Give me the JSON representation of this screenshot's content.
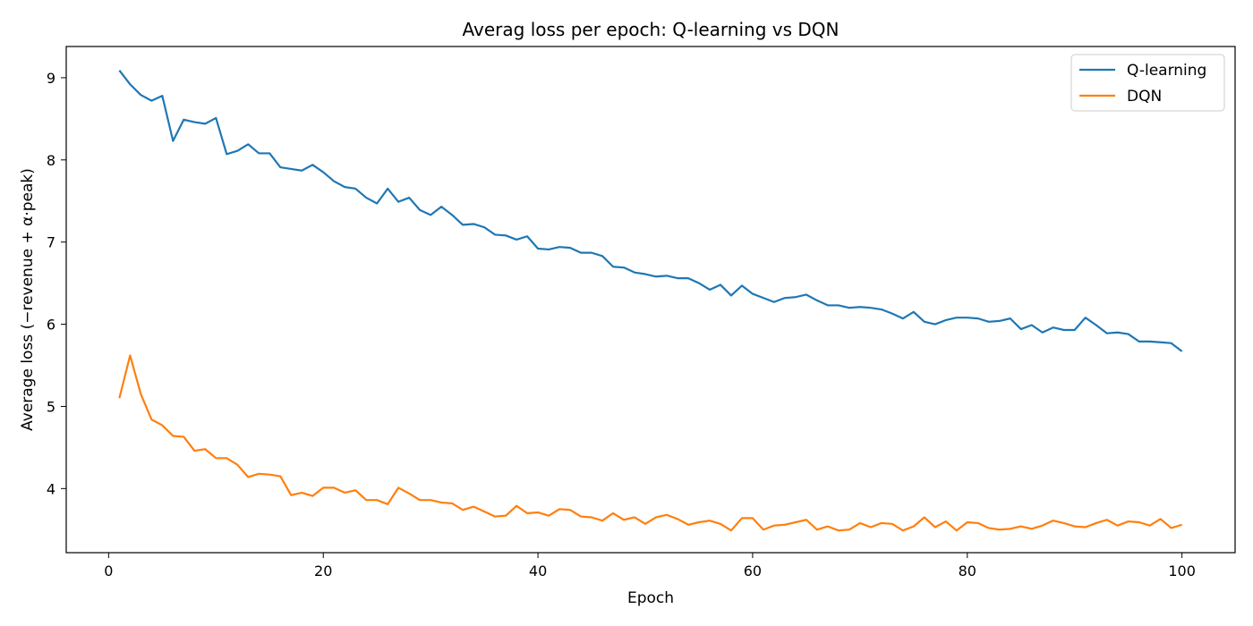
{
  "chart_data": {
    "type": "line",
    "title": "Averag loss per epoch: Q-learning vs DQN",
    "xlabel": "Epoch",
    "ylabel": "Average loss  (−revenue + α·peak)",
    "xlim": [
      -3.95,
      104.95
    ],
    "ylim": [
      3.22,
      9.38
    ],
    "xticks": [
      0,
      20,
      40,
      60,
      80,
      100
    ],
    "yticks": [
      4,
      5,
      6,
      7,
      8,
      9
    ],
    "grid": false,
    "legend_position": "top-right",
    "x": [
      1,
      2,
      3,
      4,
      5,
      6,
      7,
      8,
      9,
      10,
      11,
      12,
      13,
      14,
      15,
      16,
      17,
      18,
      19,
      20,
      21,
      22,
      23,
      24,
      25,
      26,
      27,
      28,
      29,
      30,
      31,
      32,
      33,
      34,
      35,
      36,
      37,
      38,
      39,
      40,
      41,
      42,
      43,
      44,
      45,
      46,
      47,
      48,
      49,
      50,
      51,
      52,
      53,
      54,
      55,
      56,
      57,
      58,
      59,
      60,
      61,
      62,
      63,
      64,
      65,
      66,
      67,
      68,
      69,
      70,
      71,
      72,
      73,
      74,
      75,
      76,
      77,
      78,
      79,
      80,
      81,
      82,
      83,
      84,
      85,
      86,
      87,
      88,
      89,
      90,
      91,
      92,
      93,
      94,
      95,
      96,
      97,
      98,
      99,
      100
    ],
    "series": [
      {
        "name": "Q-learning",
        "color": "#1f77b4",
        "values": [
          9.09,
          8.92,
          8.79,
          8.72,
          8.78,
          8.23,
          8.49,
          8.46,
          8.44,
          8.51,
          8.07,
          8.11,
          8.19,
          8.08,
          8.08,
          7.91,
          7.89,
          7.87,
          7.94,
          7.85,
          7.74,
          7.67,
          7.65,
          7.54,
          7.47,
          7.65,
          7.49,
          7.54,
          7.39,
          7.33,
          7.43,
          7.33,
          7.21,
          7.22,
          7.18,
          7.09,
          7.08,
          7.03,
          7.07,
          6.92,
          6.91,
          6.94,
          6.93,
          6.87,
          6.87,
          6.83,
          6.7,
          6.69,
          6.63,
          6.61,
          6.58,
          6.59,
          6.56,
          6.56,
          6.5,
          6.42,
          6.48,
          6.35,
          6.47,
          6.37,
          6.32,
          6.27,
          6.32,
          6.33,
          6.36,
          6.29,
          6.23,
          6.23,
          6.2,
          6.21,
          6.2,
          6.18,
          6.13,
          6.07,
          6.15,
          6.03,
          6.0,
          6.05,
          6.08,
          6.08,
          6.07,
          6.03,
          6.04,
          6.07,
          5.94,
          5.99,
          5.9,
          5.96,
          5.93,
          5.93,
          6.08,
          5.99,
          5.89,
          5.9,
          5.88,
          5.79,
          5.79,
          5.78,
          5.77,
          5.67
        ]
      },
      {
        "name": "DQN",
        "color": "#ff7f0e",
        "values": [
          5.1,
          5.62,
          5.15,
          4.84,
          4.77,
          4.64,
          4.63,
          4.46,
          4.48,
          4.37,
          4.37,
          4.29,
          4.14,
          4.18,
          4.17,
          4.15,
          3.92,
          3.95,
          3.91,
          4.01,
          4.01,
          3.95,
          3.98,
          3.86,
          3.86,
          3.81,
          4.01,
          3.94,
          3.86,
          3.86,
          3.83,
          3.82,
          3.74,
          3.78,
          3.72,
          3.66,
          3.67,
          3.79,
          3.7,
          3.71,
          3.67,
          3.75,
          3.74,
          3.66,
          3.65,
          3.61,
          3.7,
          3.62,
          3.65,
          3.57,
          3.65,
          3.68,
          3.63,
          3.56,
          3.59,
          3.61,
          3.57,
          3.49,
          3.64,
          3.64,
          3.5,
          3.55,
          3.56,
          3.59,
          3.62,
          3.5,
          3.54,
          3.49,
          3.5,
          3.58,
          3.53,
          3.58,
          3.57,
          3.49,
          3.54,
          3.65,
          3.53,
          3.6,
          3.49,
          3.59,
          3.58,
          3.52,
          3.5,
          3.51,
          3.54,
          3.51,
          3.55,
          3.61,
          3.58,
          3.54,
          3.53,
          3.58,
          3.62,
          3.55,
          3.6,
          3.59,
          3.55,
          3.63,
          3.52,
          3.56
        ]
      }
    ]
  }
}
